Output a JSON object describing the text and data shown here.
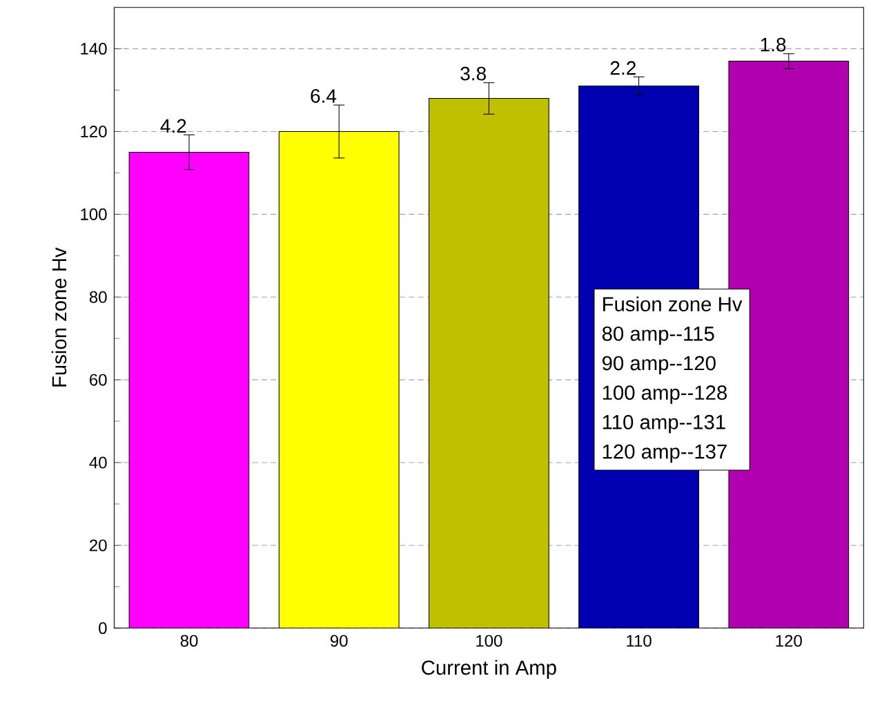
{
  "chart_data": {
    "type": "bar",
    "xlabel": "Current in Amp",
    "ylabel": "Fusion zone Hv",
    "categories": [
      "80",
      "90",
      "100",
      "110",
      "120"
    ],
    "values": [
      115,
      120,
      128,
      131,
      137
    ],
    "colors": [
      "#ff00ff",
      "#ffff00",
      "#c0c000",
      "#0000b0",
      "#b000b0"
    ],
    "errors": [
      4.2,
      6.4,
      3.8,
      2.2,
      1.8
    ],
    "ylim": [
      0,
      150
    ],
    "yticks": [
      0,
      20,
      40,
      60,
      80,
      100,
      120,
      140
    ],
    "grid": "y",
    "annotations": [
      {
        "text": "4.2",
        "x": "80",
        "y": 119.2
      },
      {
        "text": "6.4",
        "x": "90",
        "y": 126.4
      },
      {
        "text": "3.8",
        "x": "100",
        "y": 131.8
      },
      {
        "text": "2.2",
        "x": "110",
        "y": 133.2
      },
      {
        "text": "1.8",
        "x": "120",
        "y": 138.8
      },
      "Fusion zone Hv",
      "80 amp--115",
      "90 amp--120",
      "100 amp--128",
      "110 amp--131",
      "120 amp--137"
    ]
  }
}
